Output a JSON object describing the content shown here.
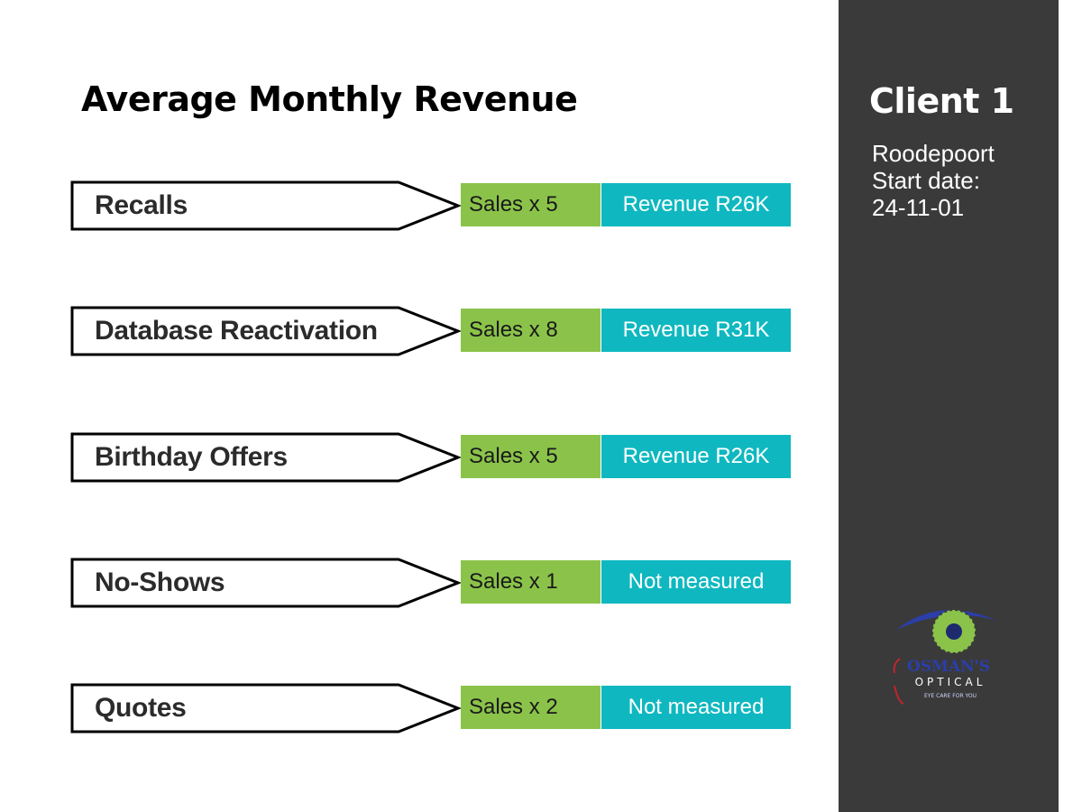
{
  "title": "Average Monthly Revenue",
  "rows": [
    {
      "label": "Recalls",
      "sales": "Sales x 5",
      "revenue": "Revenue R26K"
    },
    {
      "label": "Database Reactivation",
      "sales": "Sales x 8",
      "revenue": "Revenue R31K"
    },
    {
      "label": "Birthday Offers",
      "sales": "Sales x 5",
      "revenue": "Revenue R26K"
    },
    {
      "label": "No-Shows",
      "sales": "Sales x 1",
      "revenue": "Not measured"
    },
    {
      "label": "Quotes",
      "sales": "Sales x 2",
      "revenue": "Not measured"
    }
  ],
  "sidebar": {
    "client": "Client 1",
    "location": "Roodepoort",
    "start_label": "Start date:",
    "start_date": "24-11-01",
    "logo": {
      "name": "OSMAN'S",
      "subname": "OPTICAL",
      "tagline": "EYE CARE FOR YOU"
    }
  },
  "colors": {
    "sales": "#8bc34a",
    "revenue": "#0fb8c0",
    "sidebar": "#3a3a3a"
  }
}
